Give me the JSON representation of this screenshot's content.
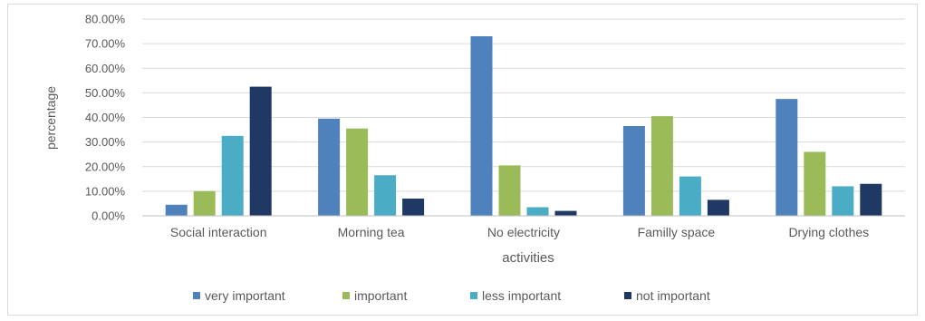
{
  "chart_data": {
    "type": "bar",
    "title": "",
    "xlabel": "activities",
    "ylabel": "percentage",
    "ylim": [
      0,
      80
    ],
    "y_ticks": [
      "0.00%",
      "10.00%",
      "20.00%",
      "30.00%",
      "40.00%",
      "50.00%",
      "60.00%",
      "70.00%",
      "80.00%"
    ],
    "categories": [
      "Social interaction",
      "Morning tea",
      "No electricity",
      "Familly space",
      "Drying clothes"
    ],
    "series": [
      {
        "name": "very important",
        "color": "#4f81bd",
        "values": [
          4.5,
          39.5,
          73.0,
          36.5,
          47.5
        ]
      },
      {
        "name": "important",
        "color": "#9bbb59",
        "values": [
          10.0,
          35.5,
          20.5,
          40.5,
          26.0
        ]
      },
      {
        "name": "less important",
        "color": "#4bacc6",
        "values": [
          32.5,
          16.5,
          3.5,
          16.0,
          12.0
        ]
      },
      {
        "name": "not important",
        "color": "#1f3864",
        "values": [
          52.5,
          7.0,
          2.0,
          6.5,
          13.0
        ]
      }
    ],
    "grid": true,
    "legend": "bottom"
  }
}
